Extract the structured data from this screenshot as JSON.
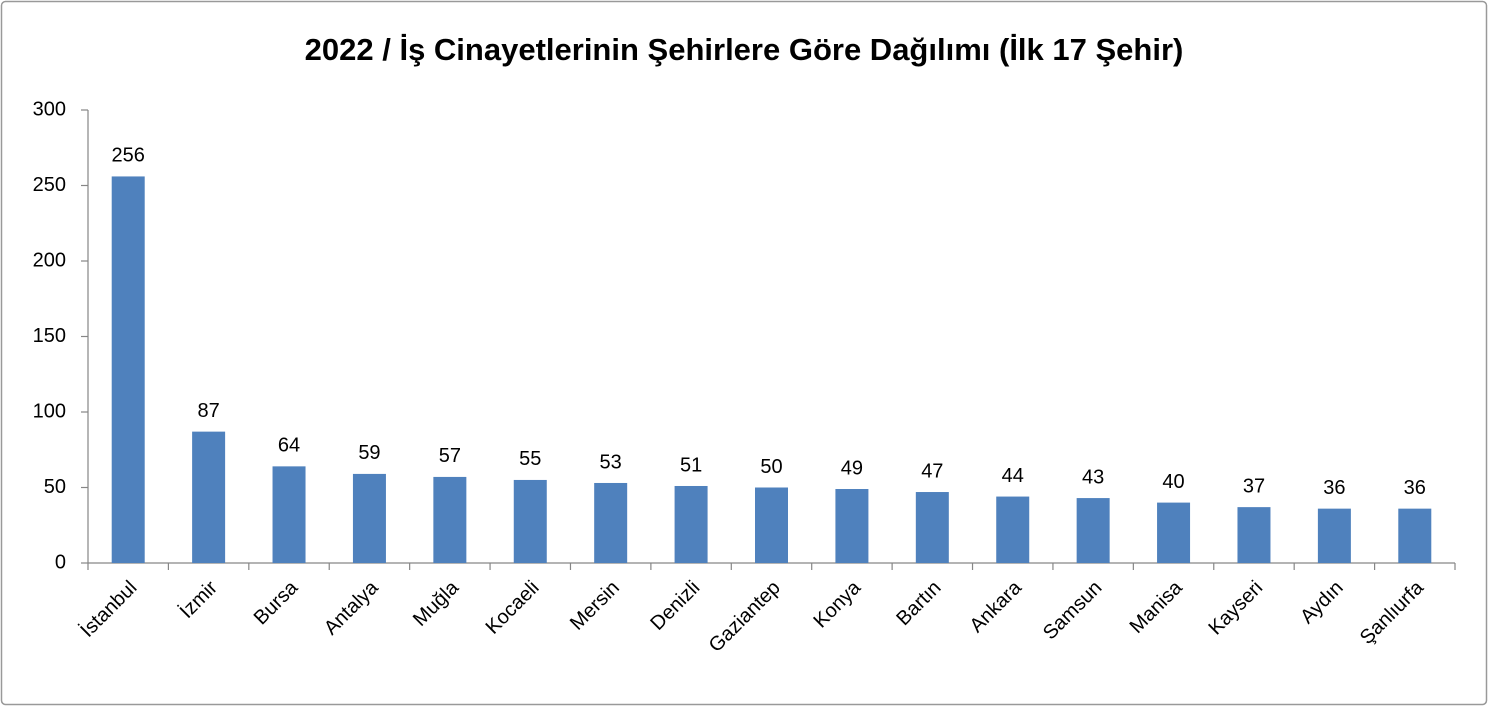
{
  "chart_data": {
    "type": "bar",
    "title": "2022 / İş Cinayetlerinin Şehirlere Göre Dağılımı (İlk 17 Şehir)",
    "categories": [
      "İstanbul",
      "İzmir",
      "Bursa",
      "Antalya",
      "Muğla",
      "Kocaeli",
      "Mersin",
      "Denizli",
      "Gaziantep",
      "Konya",
      "Bartın",
      "Ankara",
      "Samsun",
      "Manisa",
      "Kayseri",
      "Aydın",
      "Şanlıurfa"
    ],
    "values": [
      256,
      87,
      64,
      59,
      57,
      55,
      53,
      51,
      50,
      49,
      47,
      44,
      43,
      40,
      37,
      36,
      36
    ],
    "color": "#4f81bd",
    "ylim": [
      0,
      300
    ],
    "yticks": [
      0,
      50,
      100,
      150,
      200,
      250,
      300
    ],
    "grid": false
  }
}
